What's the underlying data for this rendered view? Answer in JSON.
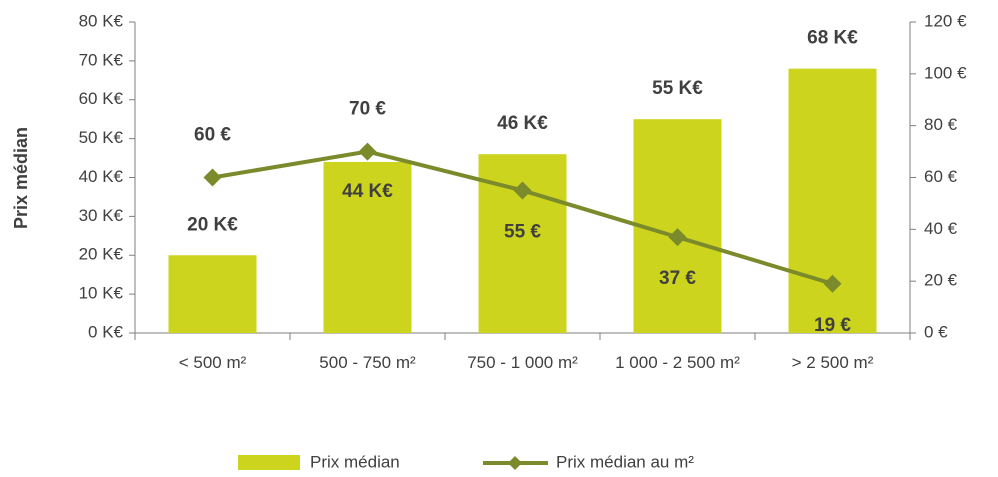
{
  "chart_data": {
    "type": "bar_line",
    "y_label": "Prix médian",
    "categories": [
      "< 500 m²",
      "500 - 750 m²",
      "750 - 1 000 m²",
      "1 000 - 2 500 m²",
      "> 2 500 m²"
    ],
    "series": [
      {
        "name": "Prix médian",
        "type": "bar",
        "color": "#cdd41e",
        "values": [
          20,
          44,
          46,
          55,
          68
        ],
        "value_labels": [
          "20 K€",
          "44 K€",
          "46 K€",
          "55 K€",
          "68 K€"
        ]
      },
      {
        "name": "Prix médian au m²",
        "type": "line",
        "axis": "y2",
        "color": "#7b8a2b",
        "values": [
          60,
          70,
          55,
          37,
          19
        ],
        "value_labels": [
          "60 €",
          "70 €",
          "55 €",
          "37 €",
          "19 €"
        ]
      }
    ],
    "ylim": [
      0,
      80
    ],
    "yticks": [
      {
        "value": 0,
        "label": "0 K€"
      },
      {
        "value": 10,
        "label": "10 K€"
      },
      {
        "value": 20,
        "label": "20 K€"
      },
      {
        "value": 30,
        "label": "30 K€"
      },
      {
        "value": 40,
        "label": "40 K€"
      },
      {
        "value": 50,
        "label": "50 K€"
      },
      {
        "value": 60,
        "label": "60 K€"
      },
      {
        "value": 70,
        "label": "70 K€"
      },
      {
        "value": 80,
        "label": "80 K€"
      }
    ],
    "y2lim": [
      0,
      120
    ],
    "y2ticks": [
      {
        "value": 0,
        "label": "0 €"
      },
      {
        "value": 20,
        "label": "20 €"
      },
      {
        "value": 40,
        "label": "40 €"
      },
      {
        "value": 60,
        "label": "60 €"
      },
      {
        "value": 80,
        "label": "80 €"
      },
      {
        "value": 100,
        "label": "100 €"
      },
      {
        "value": 120,
        "label": "120 €"
      }
    ],
    "legend": "bottom"
  }
}
